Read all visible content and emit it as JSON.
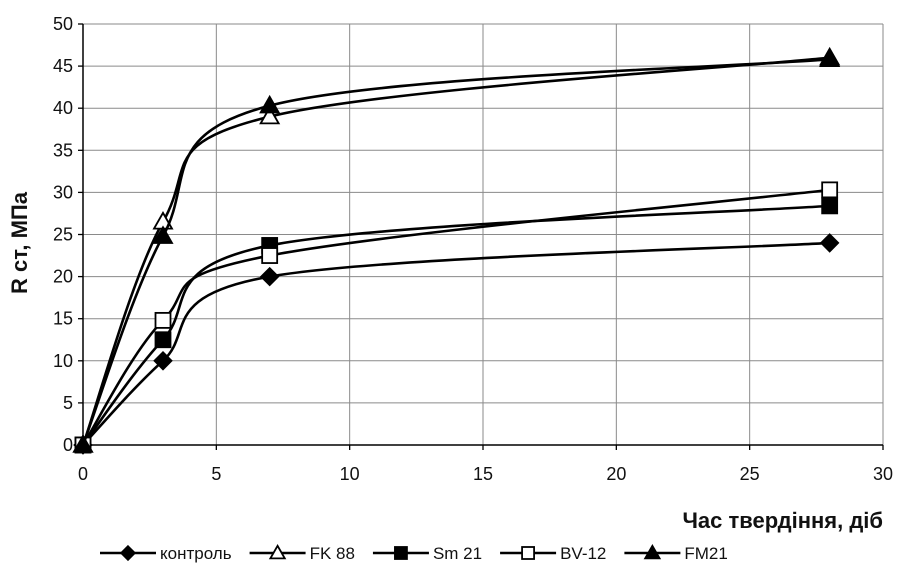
{
  "chart_data": {
    "type": "line",
    "title": "",
    "xlabel": "Час твердіння, діб",
    "ylabel": "R ст, МПа",
    "xlim": [
      0,
      30
    ],
    "ylim": [
      0,
      50
    ],
    "x_ticks": [
      0,
      5,
      10,
      15,
      20,
      25,
      30
    ],
    "y_ticks": [
      0,
      5,
      10,
      15,
      20,
      25,
      30,
      35,
      40,
      45,
      50
    ],
    "grid": true,
    "smooth": true,
    "legend_position": "bottom",
    "series": [
      {
        "name": "контроль",
        "marker": "diamond",
        "filled": true,
        "x": [
          0,
          3,
          7,
          28
        ],
        "y": [
          0,
          10,
          20,
          24
        ]
      },
      {
        "name": "FK 88",
        "marker": "triangle",
        "filled": false,
        "x": [
          0,
          3,
          7,
          28
        ],
        "y": [
          0,
          26.5,
          39,
          46
        ]
      },
      {
        "name": "Sm 21",
        "marker": "square",
        "filled": true,
        "x": [
          0,
          3,
          7,
          28
        ],
        "y": [
          0,
          12.5,
          23.7,
          28.4
        ]
      },
      {
        "name": "BV-12",
        "marker": "square",
        "filled": false,
        "x": [
          0,
          3,
          7,
          28
        ],
        "y": [
          0,
          14.8,
          22.5,
          30.3
        ]
      },
      {
        "name": "FM21",
        "marker": "triangle",
        "filled": true,
        "x": [
          0,
          3,
          7,
          28
        ],
        "y": [
          0,
          24.8,
          40.3,
          45.8
        ]
      }
    ]
  }
}
